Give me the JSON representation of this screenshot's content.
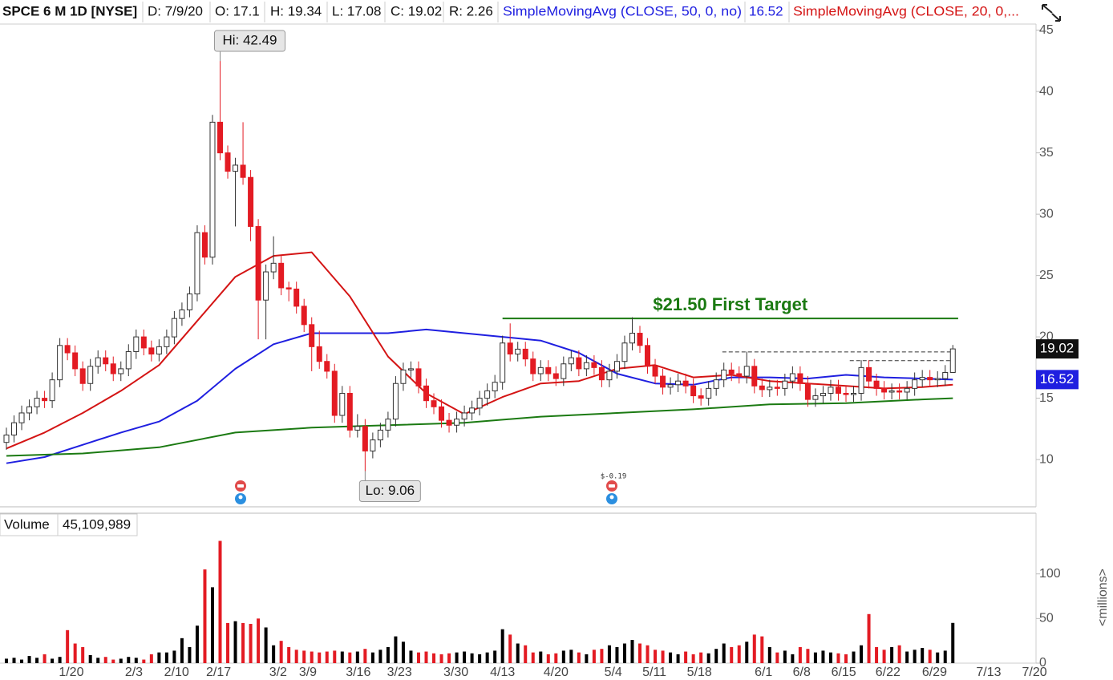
{
  "header": {
    "symbol": "SPCE 6 M 1D [NYSE]",
    "date": "D: 7/9/20",
    "open": "O: 17.1",
    "high": "H: 19.34",
    "low": "L: 17.08",
    "close": "C: 19.02",
    "range": "R: 2.26"
  },
  "chart_data": [
    {
      "type": "candlestick",
      "x": [
        0,
        1,
        2,
        3,
        4,
        5,
        6,
        7,
        8,
        9,
        10,
        11,
        12,
        13,
        14,
        15,
        16,
        17,
        18,
        19,
        20,
        21,
        22,
        23,
        24,
        25,
        26,
        27,
        28,
        29,
        30,
        31,
        32,
        33,
        34,
        35,
        36,
        37,
        38,
        39,
        40,
        41,
        42,
        43,
        44,
        45,
        46,
        47,
        48,
        49,
        50,
        51,
        52,
        53,
        54,
        55,
        56,
        57,
        58,
        59,
        60,
        61,
        62,
        63,
        64,
        65,
        66,
        67,
        68,
        69,
        70,
        71,
        72,
        73,
        74,
        75,
        76,
        77,
        78,
        79,
        80,
        81,
        82,
        83,
        84,
        85,
        86,
        87,
        88,
        89,
        90,
        91,
        92,
        93,
        94,
        95,
        96,
        97,
        98,
        99,
        100,
        101,
        102,
        103,
        104,
        105,
        106,
        107,
        108,
        109,
        110,
        111,
        112,
        113,
        114,
        115,
        116,
        117,
        118,
        119,
        120,
        121,
        122,
        123,
        124
      ],
      "open": [
        11.4,
        12.0,
        13.0,
        13.8,
        14.3,
        15.0,
        14.8,
        16.5,
        19.3,
        18.7,
        17.4,
        16.2,
        17.6,
        18.3,
        17.8,
        17.0,
        17.4,
        18.8,
        20.0,
        19.1,
        18.6,
        19.2,
        20.0,
        21.5,
        22.2,
        23.5,
        28.5,
        26.5,
        37.5,
        35.0,
        33.5,
        34.0,
        33.0,
        29.0,
        23.0,
        25.3,
        26.0,
        24.0,
        23.9,
        22.5,
        21.0,
        19.2,
        18.0,
        17.2,
        13.6,
        15.4,
        12.4,
        12.7,
        10.7,
        11.6,
        12.4,
        13.3,
        16.2,
        17.3,
        17.4,
        16.0,
        14.8,
        14.3,
        13.2,
        12.8,
        13.3,
        13.8,
        14.2,
        15.0,
        15.6,
        16.3,
        19.5,
        18.6,
        19.0,
        18.2,
        17.0,
        17.5,
        17.0,
        16.6,
        17.8,
        18.3,
        17.4,
        17.9,
        17.5,
        16.5,
        17.2,
        18.0,
        19.5,
        20.3,
        19.3,
        17.6,
        16.8,
        15.9,
        16.1,
        16.4,
        16.0,
        15.2,
        15.0,
        15.8,
        16.5,
        17.3,
        17.0,
        16.8,
        17.6,
        16.0,
        15.7,
        15.9,
        15.8,
        16.4,
        17.0,
        16.2,
        14.9,
        15.2,
        15.4,
        15.9,
        15.4,
        15.3,
        15.4,
        17.5,
        16.4,
        15.8,
        15.5,
        15.6,
        15.5,
        15.8,
        16.5,
        16.7,
        16.5,
        16.6,
        17.1
      ],
      "high": [
        12.6,
        13.6,
        14.4,
        14.9,
        15.6,
        15.6,
        17.1,
        19.9,
        19.9,
        19.3,
        18.0,
        18.2,
        18.9,
        18.9,
        18.4,
        18.0,
        19.4,
        20.6,
        20.6,
        19.7,
        19.8,
        20.6,
        22.1,
        22.8,
        24.1,
        29.1,
        29.1,
        38.1,
        42.49,
        35.6,
        34.6,
        37.5,
        33.6,
        29.6,
        25.9,
        28.2,
        26.6,
        24.5,
        24.5,
        23.1,
        21.6,
        20.5,
        18.6,
        17.8,
        16.0,
        16.0,
        13.7,
        13.3,
        12.2,
        13.0,
        13.9,
        16.8,
        17.9,
        18.0,
        18.0,
        16.6,
        15.4,
        14.9,
        13.8,
        13.9,
        14.4,
        14.8,
        15.6,
        16.2,
        16.9,
        20.1,
        21.1,
        19.6,
        19.6,
        18.8,
        18.1,
        18.1,
        17.6,
        18.4,
        18.9,
        18.9,
        18.5,
        18.5,
        18.1,
        17.8,
        18.6,
        20.1,
        21.6,
        20.9,
        19.9,
        18.2,
        17.4,
        16.7,
        17.0,
        17.0,
        16.6,
        15.8,
        16.4,
        17.1,
        17.9,
        17.9,
        17.6,
        18.8,
        18.2,
        16.6,
        16.5,
        16.5,
        17.0,
        17.6,
        17.6,
        16.8,
        15.8,
        16.0,
        16.5,
        16.5,
        16.0,
        16.0,
        18.1,
        18.1,
        17.0,
        16.4,
        16.2,
        16.2,
        16.4,
        17.1,
        17.3,
        17.3,
        17.2,
        17.7,
        19.34
      ],
      "low": [
        10.8,
        11.4,
        12.4,
        13.2,
        13.7,
        14.2,
        14.2,
        15.9,
        18.1,
        16.8,
        15.6,
        15.6,
        17.0,
        17.2,
        16.4,
        16.4,
        16.8,
        18.2,
        18.5,
        18.0,
        18.0,
        18.6,
        19.4,
        20.9,
        21.6,
        22.9,
        25.9,
        25.9,
        34.4,
        32.9,
        29.0,
        32.4,
        27.8,
        19.8,
        19.8,
        24.7,
        23.4,
        22.9,
        21.9,
        20.4,
        17.2,
        17.4,
        16.6,
        13.0,
        13.0,
        11.8,
        11.8,
        9.06,
        10.1,
        11.0,
        11.8,
        12.7,
        15.6,
        16.7,
        15.4,
        14.2,
        13.7,
        12.6,
        12.2,
        12.2,
        12.7,
        13.2,
        13.6,
        14.4,
        15.0,
        15.7,
        18.0,
        18.0,
        17.6,
        16.4,
        16.4,
        16.4,
        16.0,
        16.0,
        17.2,
        16.8,
        16.8,
        16.9,
        15.9,
        15.9,
        16.6,
        17.4,
        18.9,
        18.7,
        17.0,
        16.2,
        15.3,
        15.3,
        15.5,
        15.4,
        14.6,
        14.4,
        14.4,
        15.2,
        15.9,
        16.4,
        16.2,
        16.2,
        15.4,
        15.1,
        15.1,
        15.2,
        15.2,
        15.8,
        15.6,
        14.3,
        14.3,
        14.6,
        14.8,
        14.8,
        14.7,
        14.7,
        14.8,
        15.8,
        15.2,
        14.9,
        14.9,
        14.9,
        14.9,
        15.2,
        15.9,
        15.9,
        15.9,
        16.0,
        17.08
      ],
      "close": [
        12.0,
        13.0,
        13.8,
        14.3,
        15.0,
        14.8,
        16.5,
        19.3,
        18.7,
        17.4,
        16.2,
        17.6,
        18.3,
        17.8,
        17.0,
        17.4,
        18.8,
        20.0,
        19.1,
        18.6,
        19.2,
        20.0,
        21.5,
        22.2,
        23.5,
        28.5,
        26.5,
        37.5,
        35.0,
        33.5,
        34.0,
        33.0,
        29.0,
        23.0,
        25.3,
        26.0,
        24.0,
        23.9,
        22.5,
        21.0,
        19.2,
        18.0,
        17.2,
        13.6,
        15.4,
        12.4,
        12.7,
        10.7,
        11.6,
        12.4,
        13.3,
        16.2,
        17.3,
        17.4,
        16.0,
        14.8,
        14.3,
        13.2,
        12.8,
        13.3,
        13.8,
        14.2,
        15.0,
        15.6,
        16.3,
        19.5,
        18.6,
        19.0,
        18.2,
        17.0,
        17.5,
        17.0,
        16.6,
        17.8,
        18.3,
        17.4,
        17.9,
        17.5,
        16.5,
        17.2,
        18.0,
        19.5,
        20.3,
        19.3,
        17.6,
        16.8,
        15.9,
        16.1,
        16.4,
        16.0,
        15.2,
        15.0,
        15.8,
        16.5,
        17.3,
        17.0,
        16.8,
        17.6,
        16.0,
        15.7,
        15.9,
        15.8,
        16.4,
        17.0,
        16.2,
        14.9,
        15.2,
        15.4,
        15.9,
        15.4,
        15.3,
        15.4,
        17.5,
        16.4,
        15.8,
        15.5,
        15.6,
        15.5,
        15.8,
        16.5,
        16.7,
        16.5,
        16.6,
        17.1,
        19.02
      ],
      "up_color": "#ffffff",
      "down_color": "#e31b23",
      "series": [
        {
          "name": "SimpleMovingAvg (CLOSE, 50, 0, no)",
          "color": "#1f1fe0",
          "x": [
            0,
            5,
            10,
            15,
            20,
            25,
            30,
            35,
            40,
            45,
            50,
            55,
            60,
            65,
            70,
            75,
            80,
            85,
            90,
            95,
            100,
            105,
            110,
            115,
            120,
            124
          ],
          "values": [
            9.7,
            10.2,
            11.2,
            12.2,
            13.1,
            14.8,
            17.4,
            19.4,
            20.3,
            20.3,
            20.3,
            20.6,
            20.3,
            20.0,
            19.7,
            18.7,
            17.0,
            16.2,
            16.1,
            16.7,
            16.7,
            16.6,
            16.9,
            16.7,
            16.6,
            16.52
          ]
        },
        {
          "name": "SimpleMovingAvg (CLOSE, 20, 0,...",
          "color": "#d41414",
          "x": [
            0,
            5,
            10,
            15,
            20,
            25,
            30,
            35,
            40,
            45,
            50,
            55,
            60,
            65,
            70,
            75,
            80,
            85,
            90,
            95,
            100,
            105,
            110,
            115,
            120,
            124
          ],
          "values": [
            10.9,
            12.2,
            13.8,
            15.6,
            17.7,
            21.3,
            24.9,
            26.6,
            26.9,
            23.3,
            18.4,
            15.4,
            13.7,
            15.1,
            16.2,
            16.4,
            17.4,
            17.7,
            16.7,
            16.9,
            16.4,
            16.2,
            16.0,
            15.8,
            15.9,
            16.1
          ]
        },
        {
          "color": "#1b7a12",
          "x": [
            0,
            10,
            20,
            30,
            40,
            50,
            60,
            70,
            80,
            90,
            100,
            110,
            120,
            124
          ],
          "values": [
            10.3,
            10.5,
            11.0,
            12.2,
            12.6,
            12.8,
            13.0,
            13.5,
            13.8,
            14.1,
            14.5,
            14.6,
            14.9,
            15.0
          ]
        }
      ],
      "hi_label": "Hi: 42.49",
      "lo_label": "Lo: 9.06",
      "target": {
        "label": "$21.50 First Target",
        "value": 21.5,
        "x": [
          65,
          124.7
        ],
        "color": "#1b7a12"
      },
      "levels": [
        {
          "value": 18.77,
          "x": [
            93.8,
            124.2
          ]
        },
        {
          "value": 18.06,
          "x": [
            110.5,
            124.2
          ]
        }
      ],
      "event_label": "$-0.19",
      "xlim": [
        -0.84,
        134.9
      ],
      "xticks": [
        {
          "value": 8.5,
          "label": "1/20"
        },
        {
          "value": 16.7,
          "label": "2/3"
        },
        {
          "value": 22.3,
          "label": "2/10"
        },
        {
          "value": 27.8,
          "label": "2/17"
        },
        {
          "value": 35.6,
          "label": "3/2"
        },
        {
          "value": 39.5,
          "label": "3/9"
        },
        {
          "value": 46.1,
          "label": "3/16"
        },
        {
          "value": 51.5,
          "label": "3/23"
        },
        {
          "value": 58.9,
          "label": "3/30"
        },
        {
          "value": 65.0,
          "label": "4/13"
        },
        {
          "value": 72.0,
          "label": "4/20"
        },
        {
          "value": 79.5,
          "label": "5/4"
        },
        {
          "value": 84.9,
          "label": "5/11"
        },
        {
          "value": 90.8,
          "label": "5/18"
        },
        {
          "value": 99.2,
          "label": "6/1"
        },
        {
          "value": 104.2,
          "label": "6/8"
        },
        {
          "value": 109.7,
          "label": "6/15"
        },
        {
          "value": 115.5,
          "label": "6/22"
        },
        {
          "value": 121.6,
          "label": "6/29"
        },
        {
          "value": 128.7,
          "label": "7/13"
        },
        {
          "value": 134.7,
          "label": "7/20"
        }
      ],
      "ylim": [
        6.15,
        45.5
      ],
      "yticks": [
        10,
        15,
        20,
        25,
        30,
        35,
        40,
        45
      ]
    },
    {
      "type": "bar",
      "title": "Volume",
      "last_label": "45,109,989",
      "ylabel": "<millions>",
      "up_color": "#000000",
      "down_color": "#e31b23",
      "values": [
        5,
        6,
        4,
        8,
        6,
        10,
        5,
        7,
        37,
        22,
        18,
        9,
        6,
        7,
        4,
        5,
        7,
        6,
        4,
        10,
        12,
        12,
        14,
        28,
        18,
        42,
        105,
        85,
        137,
        45,
        47,
        45,
        44,
        50,
        40,
        20,
        25,
        18,
        15,
        14,
        13,
        12,
        13,
        14,
        13,
        12,
        13,
        16,
        12,
        15,
        18,
        30,
        24,
        14,
        12,
        13,
        11,
        10,
        11,
        12,
        13,
        11,
        10,
        12,
        14,
        38,
        32,
        22,
        20,
        12,
        13,
        10,
        11,
        14,
        15,
        12,
        10,
        15,
        16,
        20,
        18,
        22,
        26,
        22,
        20,
        15,
        14,
        12,
        10,
        13,
        10,
        12,
        11,
        16,
        22,
        18,
        20,
        24,
        32,
        30,
        18,
        12,
        14,
        10,
        18,
        16,
        12,
        14,
        12,
        11,
        10,
        13,
        20,
        55,
        18,
        15,
        18,
        20,
        13,
        15,
        17,
        15,
        12,
        14,
        45.11
      ],
      "ylim": [
        0,
        168
      ],
      "yticks": [
        0,
        50,
        100
      ]
    }
  ]
}
